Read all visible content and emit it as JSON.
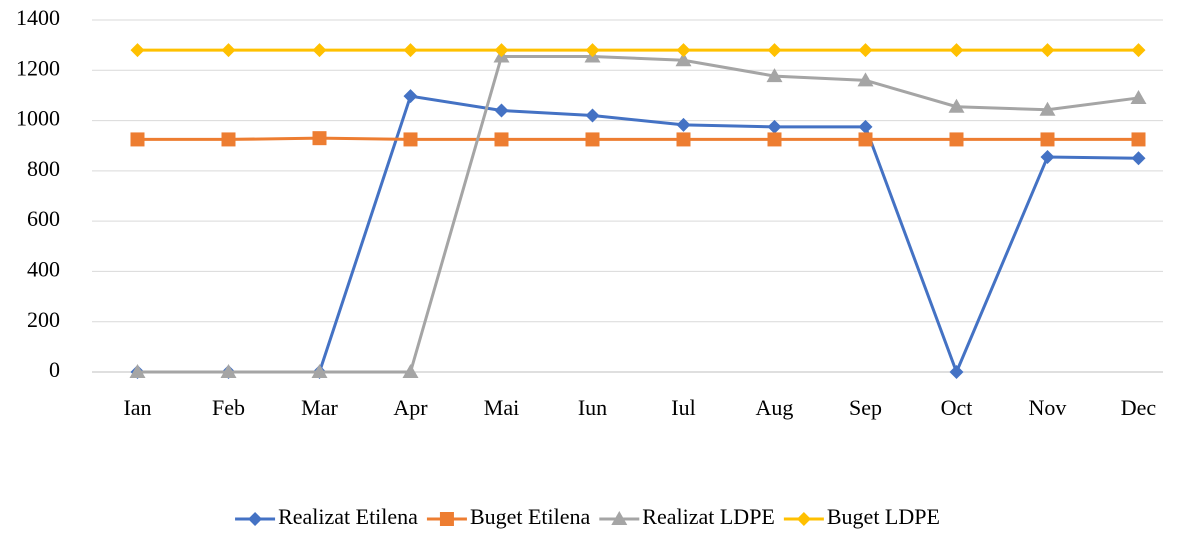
{
  "chart_data": {
    "type": "line",
    "categories": [
      "Ian",
      "Feb",
      "Mar",
      "Apr",
      "Mai",
      "Iun",
      "Iul",
      "Aug",
      "Sep",
      "Oct",
      "Nov",
      "Dec"
    ],
    "series": [
      {
        "name": "Realizat Etilena",
        "color": "#4472c4",
        "marker": "diamond",
        "values": [
          0,
          0,
          0,
          1097,
          1040,
          1020,
          983,
          975,
          975,
          0,
          855,
          850
        ]
      },
      {
        "name": "Buget Etilena",
        "color": "#ed7d31",
        "marker": "square",
        "values": [
          925,
          925,
          930,
          925,
          925,
          925,
          925,
          925,
          925,
          925,
          925,
          925
        ]
      },
      {
        "name": "Realizat LDPE",
        "color": "#a5a5a5",
        "marker": "triangle",
        "values": [
          0,
          0,
          0,
          0,
          1255,
          1255,
          1240,
          1177,
          1160,
          1055,
          1043,
          1090
        ]
      },
      {
        "name": "Buget LDPE",
        "color": "#ffc000",
        "marker": "diamond",
        "values": [
          1280,
          1280,
          1280,
          1280,
          1280,
          1280,
          1280,
          1280,
          1280,
          1280,
          1280,
          1280
        ]
      }
    ],
    "ylim": [
      0,
      1400
    ],
    "yticks": [
      0,
      200,
      400,
      600,
      800,
      1000,
      1200,
      1400
    ],
    "grid": true,
    "legend": "bottom"
  }
}
